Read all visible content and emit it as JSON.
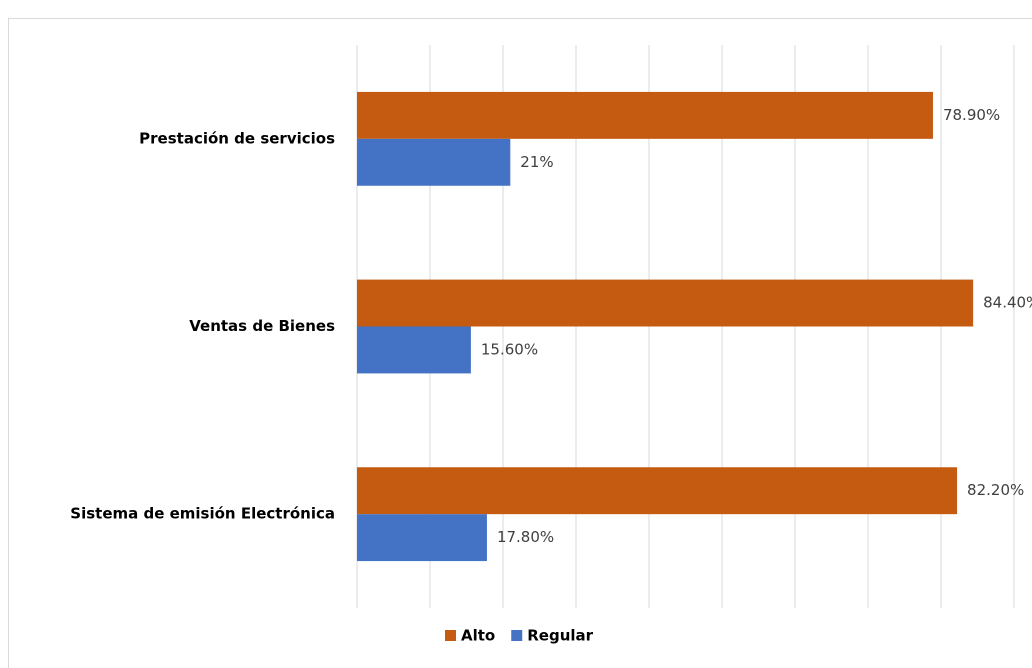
{
  "chart_data": {
    "type": "bar",
    "orientation": "horizontal",
    "categories": [
      "Prestación de servicios",
      "Ventas de Bienes",
      "Sistema de emisión Electrónica"
    ],
    "series": [
      {
        "name": "Alto",
        "color": "#c55a11",
        "values": [
          78.9,
          84.4,
          82.2
        ],
        "value_labels": [
          "78.90%",
          "84.40%",
          "82.20%"
        ]
      },
      {
        "name": "Regular",
        "color": "#4472c4",
        "values": [
          21,
          15.6,
          17.8
        ],
        "value_labels": [
          "21%",
          "15.60%",
          "17.80%"
        ]
      }
    ],
    "xlim": [
      0,
      90
    ],
    "xticks": [
      0,
      10,
      20,
      30,
      40,
      50,
      60,
      70,
      80,
      90
    ],
    "grid": true,
    "legend": "bottom"
  }
}
